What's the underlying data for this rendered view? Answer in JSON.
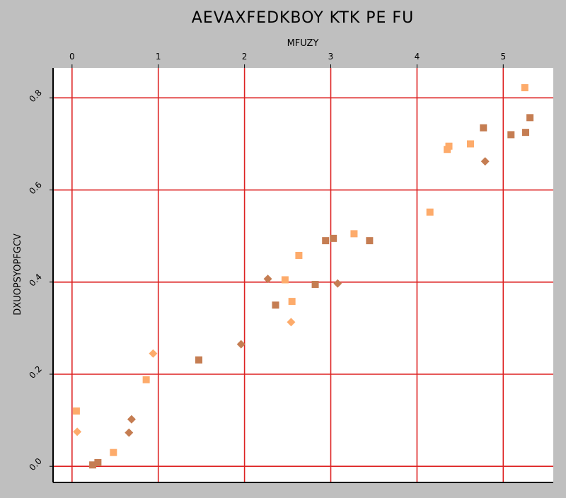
{
  "chart_data": {
    "type": "scatter",
    "title": "AEVAXFEDKBOY KTK PE FU",
    "xlabel": "MFUZY",
    "ylabel": "DXUOPSYOPFGCV",
    "xlim": [
      -0.22,
      5.58
    ],
    "ylim": [
      -0.035,
      0.865
    ],
    "x_ticks": [
      0,
      1,
      2,
      3,
      4,
      5
    ],
    "y_ticks": [
      0.0,
      0.2,
      0.4,
      0.6,
      0.8
    ],
    "x_tick_labels": [
      "0",
      "1",
      "2",
      "3",
      "4",
      "5"
    ],
    "y_tick_labels": [
      "0.0",
      "0.2",
      "0.4",
      "0.6",
      "0.8"
    ],
    "x_axis_position": "top",
    "grid": true,
    "legend": "none",
    "colors": {
      "background": "#bfbfbf",
      "plot_background": "#ffffff",
      "grid": "#dd2222",
      "light_orange": "#fdab6b",
      "brown": "#c57d52"
    },
    "series": [
      {
        "marker": "square",
        "color": "#fdab6b",
        "points": [
          [
            0.05,
            0.12
          ],
          [
            0.48,
            0.03
          ],
          [
            0.86,
            0.188
          ],
          [
            2.47,
            0.405
          ],
          [
            2.55,
            0.358
          ],
          [
            2.63,
            0.458
          ],
          [
            3.27,
            0.505
          ],
          [
            4.15,
            0.552
          ],
          [
            4.35,
            0.688
          ],
          [
            4.37,
            0.695
          ],
          [
            4.62,
            0.7
          ],
          [
            5.25,
            0.822
          ]
        ]
      },
      {
        "marker": "square",
        "color": "#c57d52",
        "points": [
          [
            0.24,
            0.003
          ],
          [
            0.3,
            0.008
          ],
          [
            1.47,
            0.231
          ],
          [
            2.36,
            0.35
          ],
          [
            2.82,
            0.395
          ],
          [
            2.94,
            0.49
          ],
          [
            3.03,
            0.495
          ],
          [
            3.45,
            0.49
          ],
          [
            4.77,
            0.735
          ],
          [
            5.09,
            0.72
          ],
          [
            5.26,
            0.725
          ],
          [
            5.31,
            0.757
          ]
        ]
      },
      {
        "marker": "diamond",
        "color": "#fdab6b",
        "points": [
          [
            0.06,
            0.075
          ],
          [
            0.94,
            0.245
          ],
          [
            2.54,
            0.313
          ]
        ]
      },
      {
        "marker": "diamond",
        "color": "#c57d52",
        "points": [
          [
            0.66,
            0.073
          ],
          [
            0.69,
            0.102
          ],
          [
            1.96,
            0.265
          ],
          [
            2.27,
            0.407
          ],
          [
            3.08,
            0.397
          ],
          [
            4.79,
            0.662
          ]
        ]
      }
    ]
  }
}
